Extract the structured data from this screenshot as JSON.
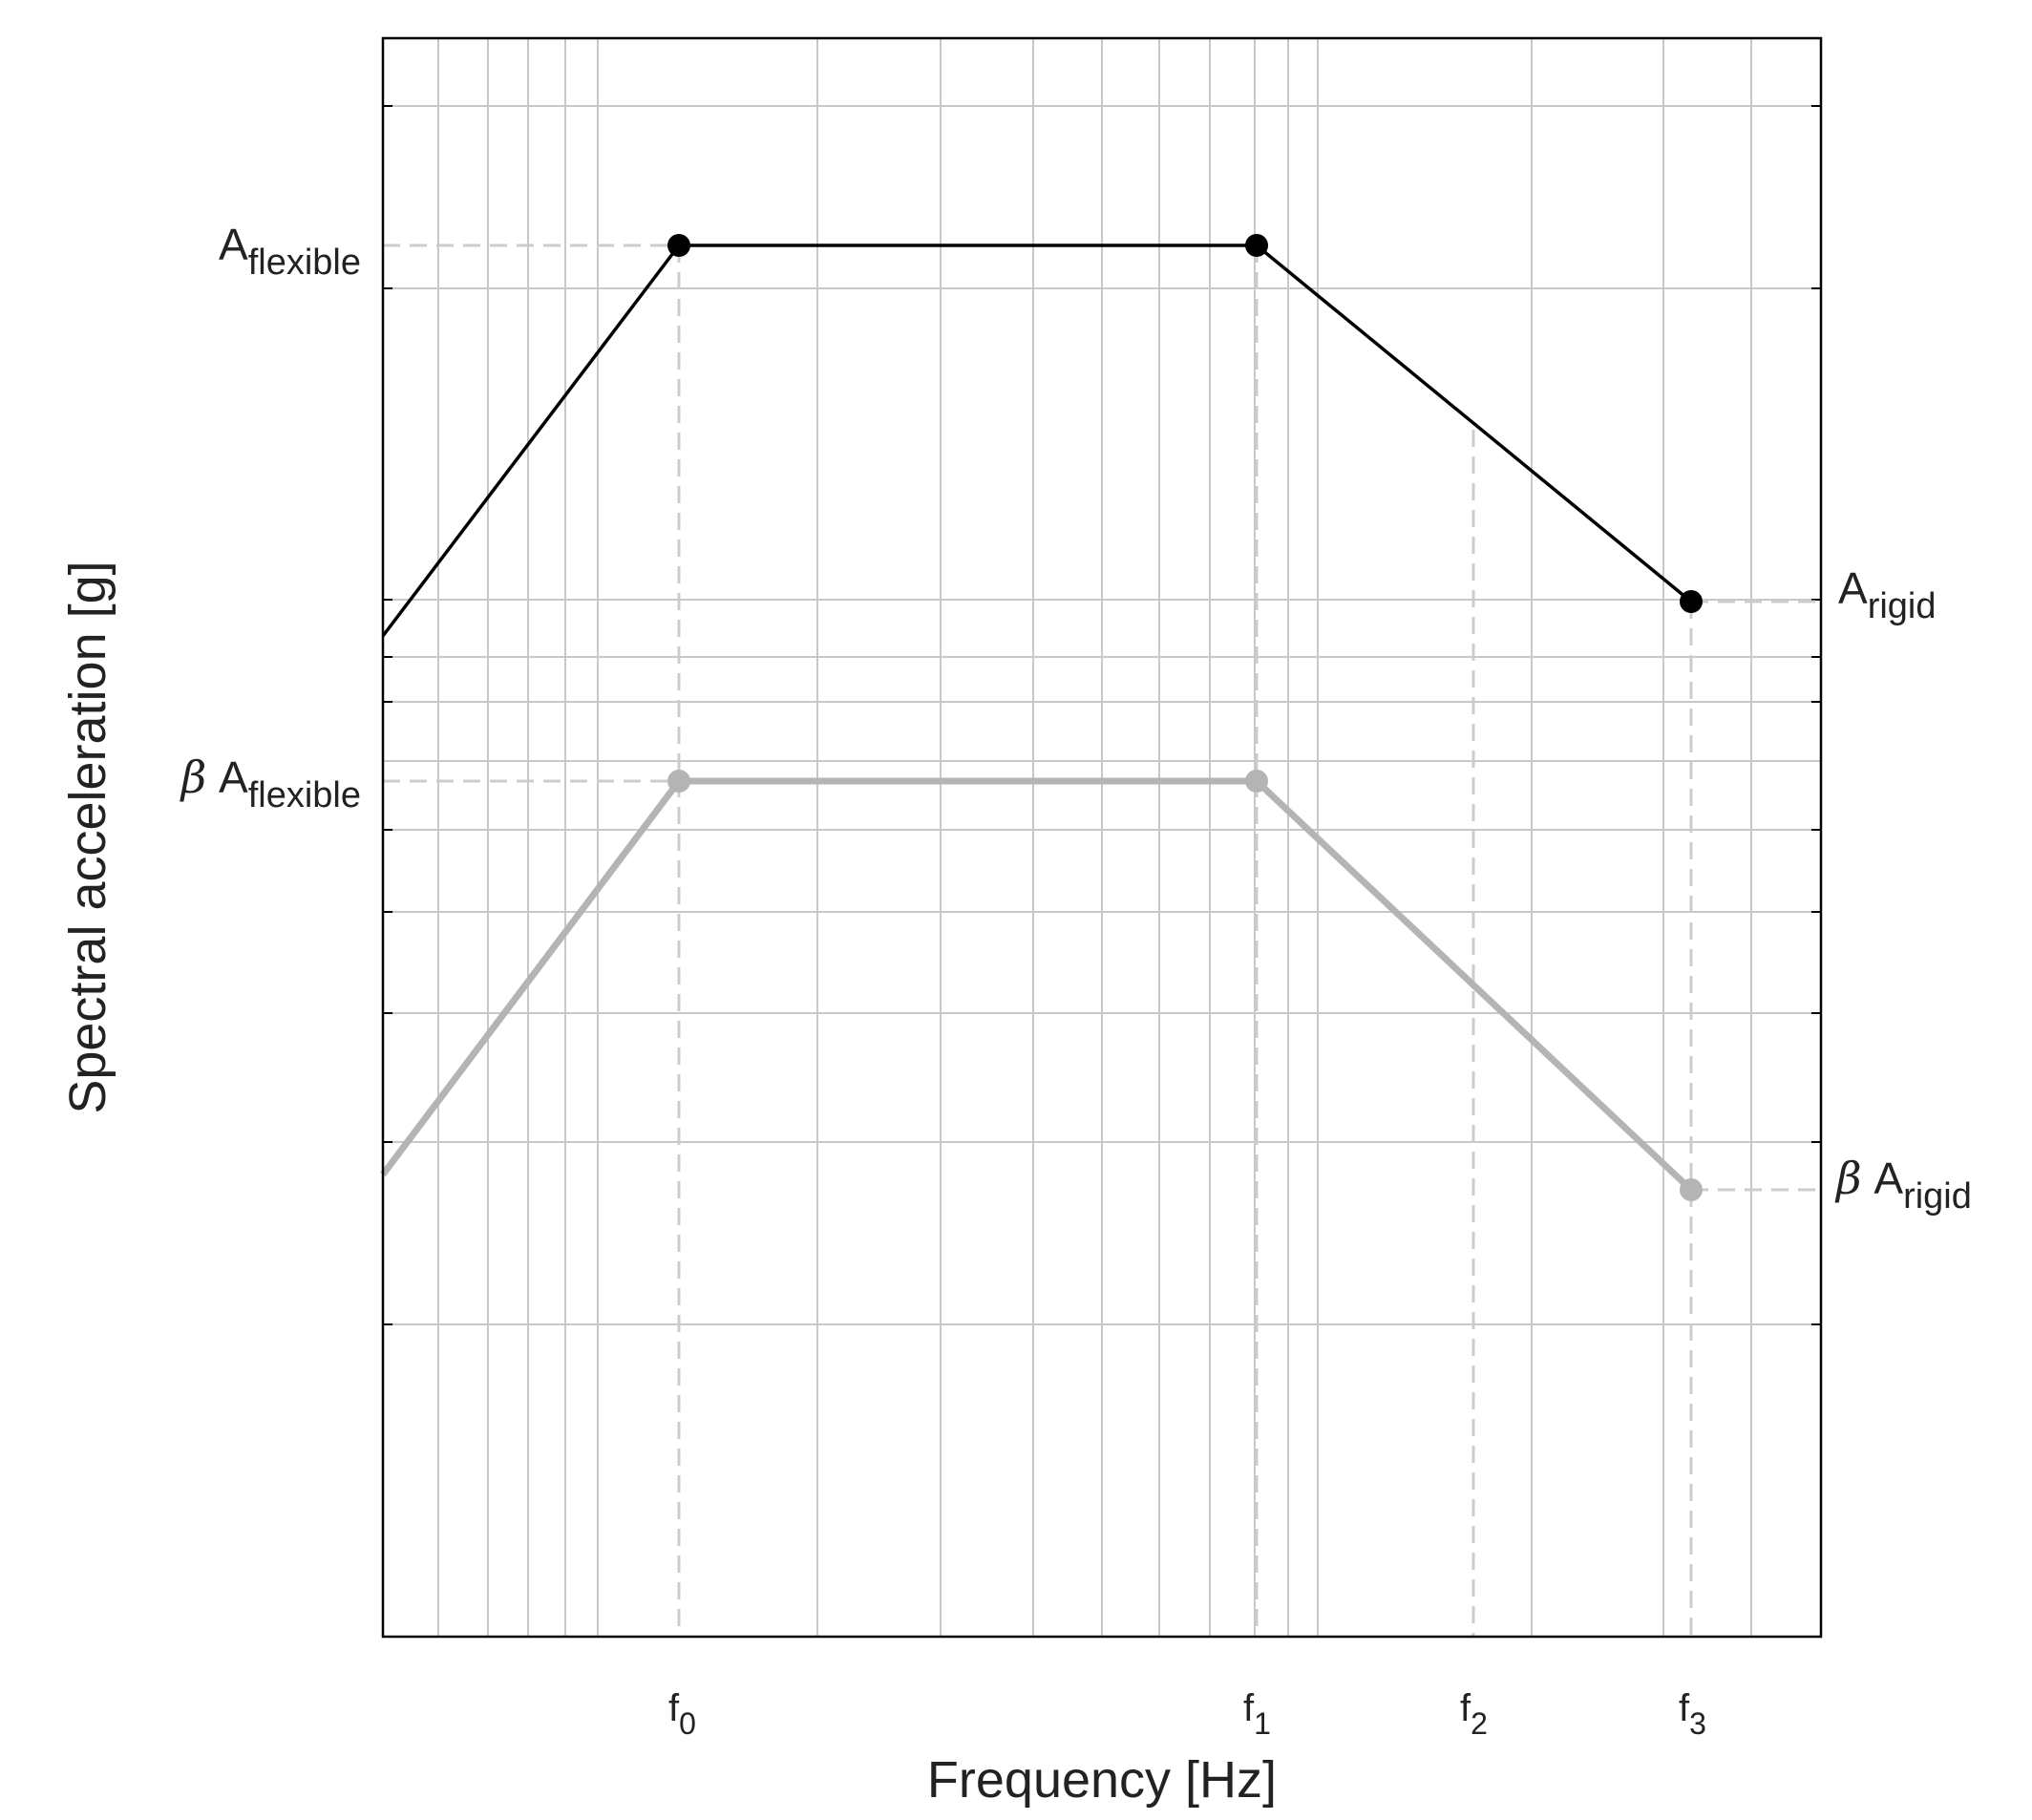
{
  "chart_data": {
    "type": "line",
    "xlabel": "Frequency [Hz]",
    "ylabel": "Spectral acceleration [g]",
    "x_scale": "log",
    "y_scale": "log",
    "grid": true,
    "x_ticks": [
      {
        "main": "f",
        "sub": "0"
      },
      {
        "main": "f",
        "sub": "1"
      },
      {
        "main": "f",
        "sub": "2"
      },
      {
        "main": "f",
        "sub": "3"
      }
    ],
    "y_levels": [
      {
        "prefix": "",
        "main": "A",
        "sub": "flexible"
      },
      {
        "prefix": "β",
        "main": "A",
        "sub": "flexible"
      },
      {
        "prefix": "",
        "main": "A",
        "sub": "rigid"
      },
      {
        "prefix": "β",
        "main": "A",
        "sub": "rigid"
      }
    ],
    "series": [
      {
        "color": "#000000",
        "points": [
          "f0",
          "f1",
          "f3"
        ],
        "values": [
          "A_flexible",
          "A_flexible",
          "A_rigid"
        ]
      },
      {
        "color": "#b4b4b4",
        "points": [
          "f0",
          "f1",
          "f3"
        ],
        "values": [
          "β A_flexible",
          "β A_flexible",
          "β A_rigid"
        ]
      }
    ],
    "colors": {
      "grid": "#c8c8c8",
      "reference_lines": "#cccccc"
    }
  }
}
